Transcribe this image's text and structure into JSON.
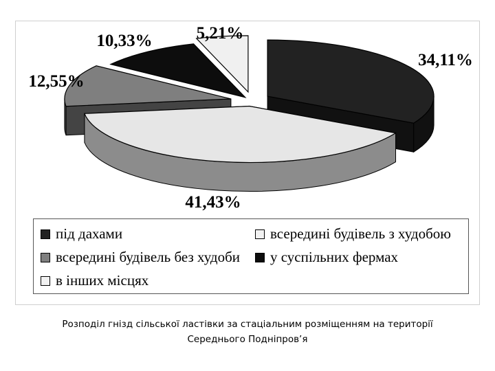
{
  "chart_data": {
    "type": "pie",
    "style": "3d-exploded",
    "slices": [
      {
        "label": "під дахами",
        "value": 34.11,
        "value_label": "34,11%",
        "color": "#222222"
      },
      {
        "label": "всередині будівель з худобою",
        "value": 41.43,
        "value_label": "41,43%",
        "color": "#e6e6e6"
      },
      {
        "label": "всередині будівель без худоби",
        "value": 12.55,
        "value_label": "12,55%",
        "color": "#7f7f7f"
      },
      {
        "label": "у суспільних фермах",
        "value": 10.33,
        "value_label": "10,33%",
        "color": "#0d0d0d"
      },
      {
        "label": "в інших місцях",
        "value": 5.21,
        "value_label": "5,21%",
        "color": "#f0f0f0"
      }
    ],
    "legend_placement": "bottom",
    "legend": [
      "під дахами",
      "всередині будівель з худобою",
      "всередині будівель без худоби",
      "у суспільних фермах",
      "в інших місцях"
    ]
  },
  "caption": {
    "line1": "Розподіл гнізд сільської ластівки за стаціальним розміщенням на території",
    "line2": "Середнього Подніпров’я"
  }
}
